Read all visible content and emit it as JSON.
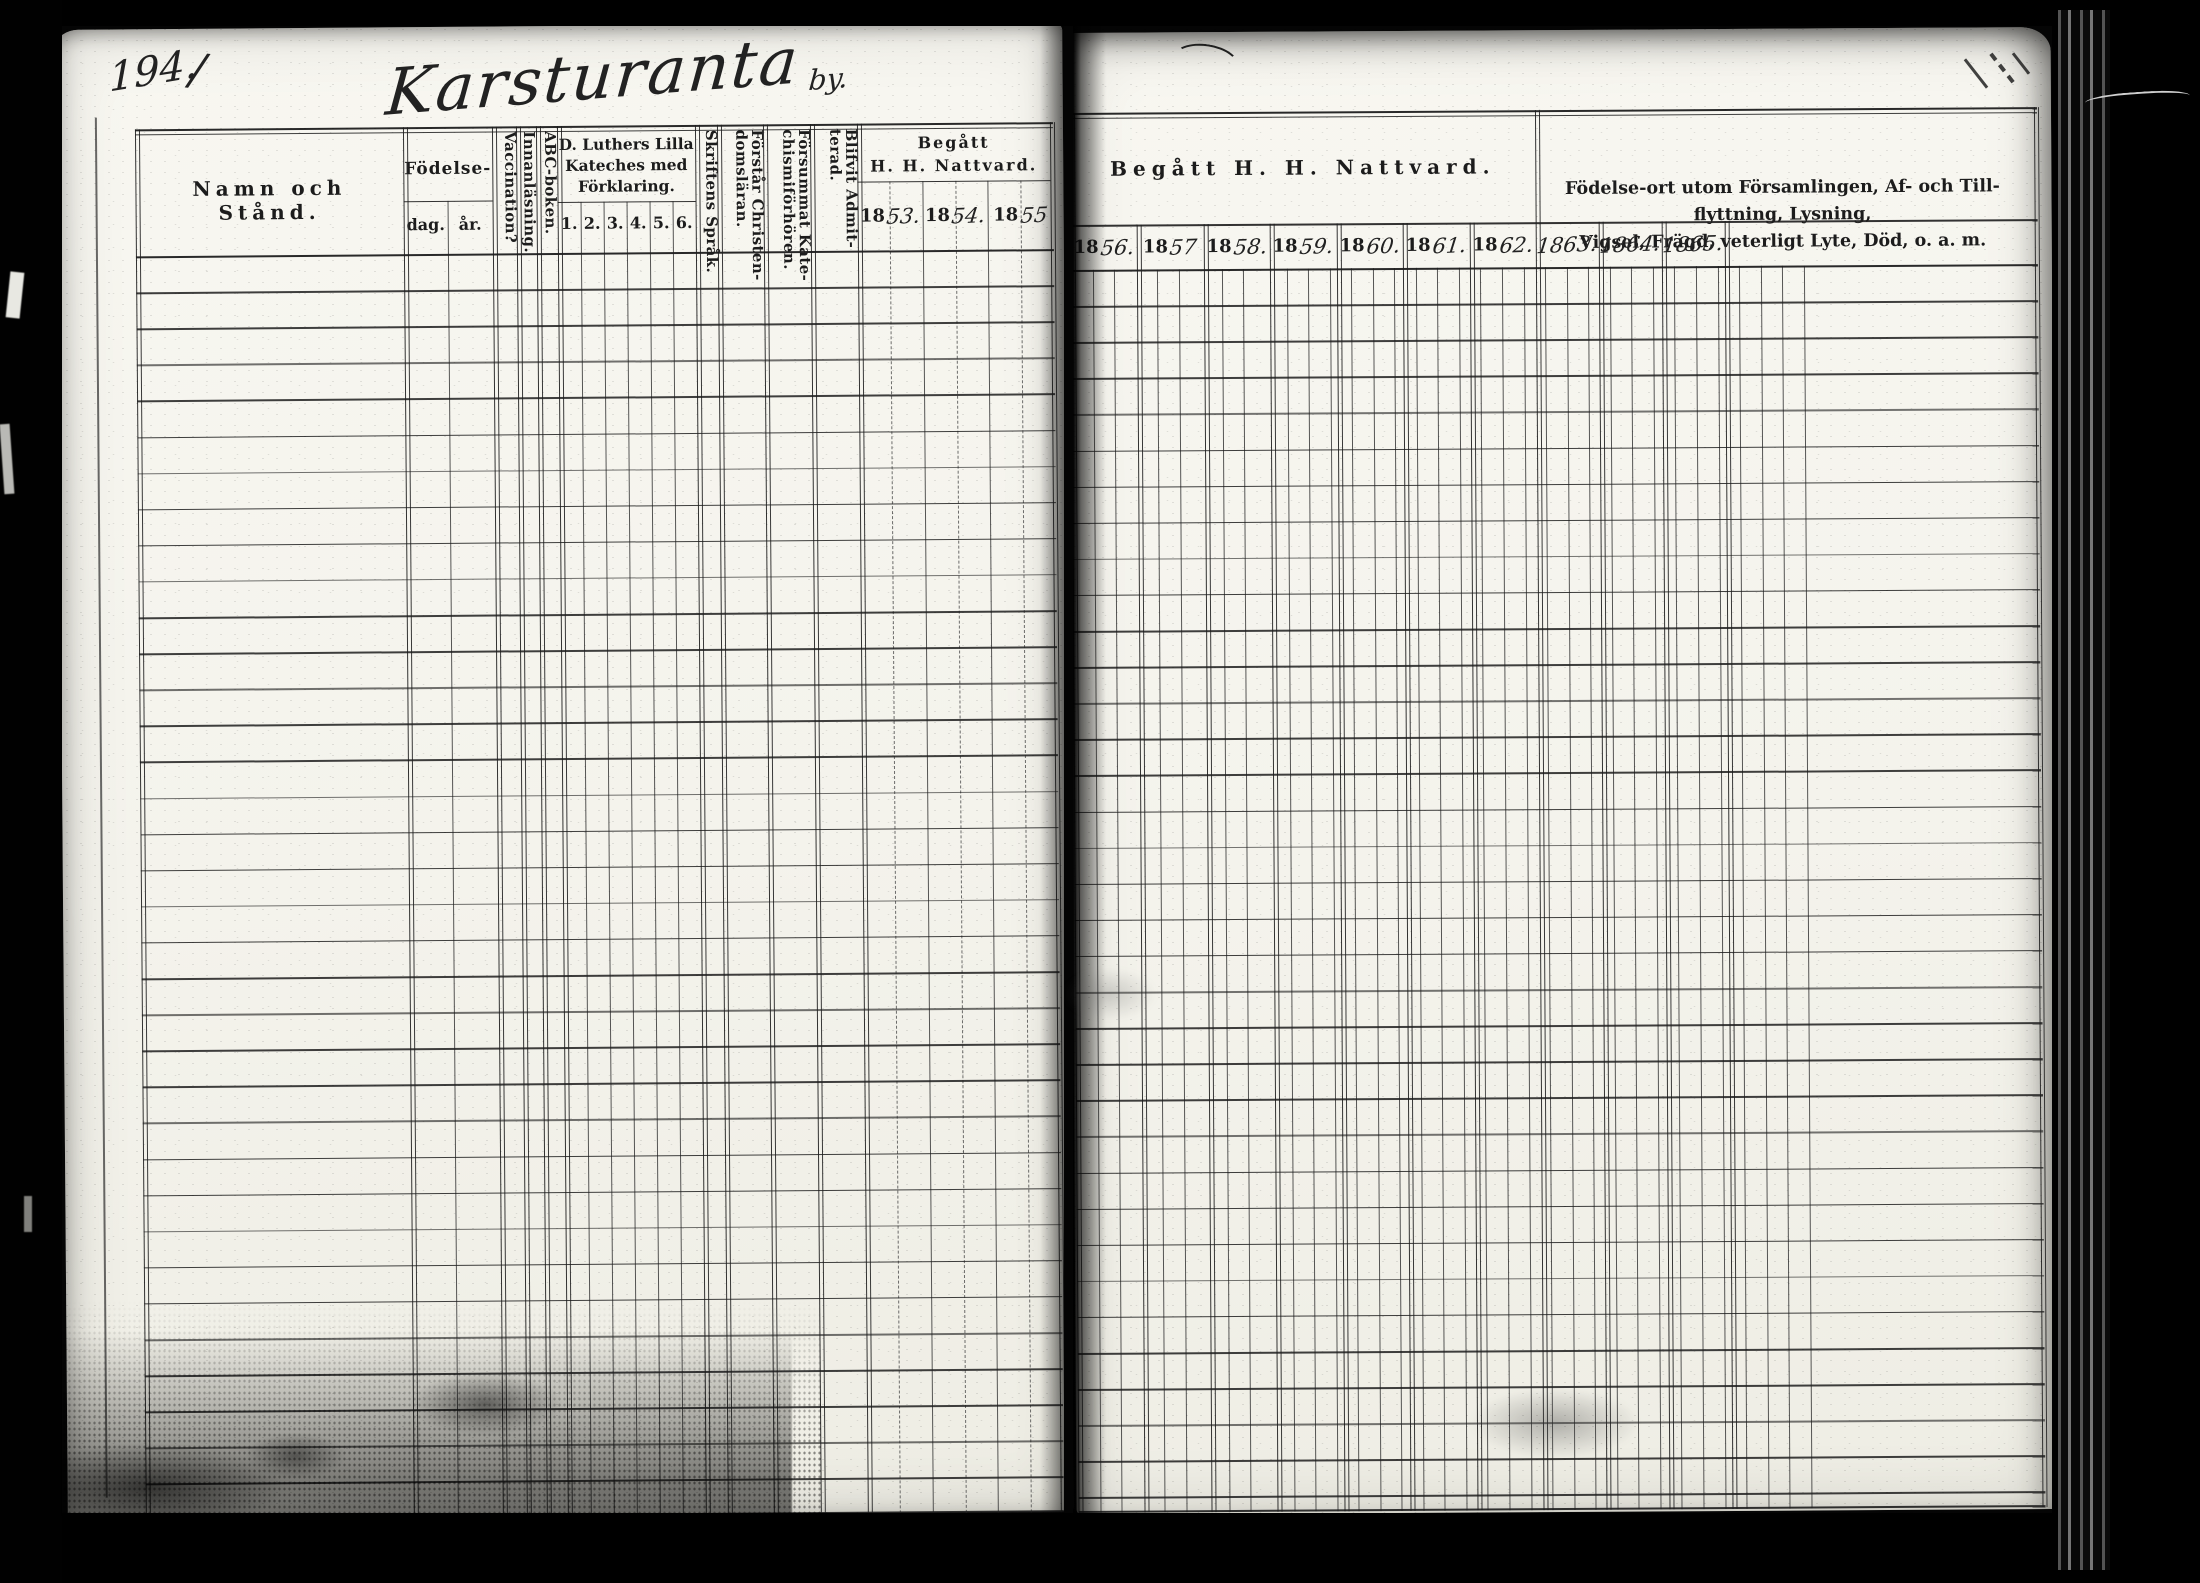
{
  "scan": {
    "page_number": "194.",
    "page_number_flourish": "∕",
    "village_title": "Karsturanta",
    "village_title_suffix": "by.",
    "paper_color": "#f6f5ef",
    "ink_color": "#1c1c1c"
  },
  "left_page": {
    "header": {
      "name_col": "Namn och Stånd.",
      "birth_group": "Födelse-",
      "birth_day": "dag.",
      "birth_year": "år.",
      "vaccination": "Vaccination?",
      "reading": "Innanläsning.",
      "abc_book": "ABC-boken.",
      "catechism_line1": "D. Luthers Lilla",
      "catechism_line2": "Kateches med",
      "catechism_line3": "Förklaring.",
      "catechism_grades": [
        "1.",
        "2.",
        "3.",
        "4.",
        "5.",
        "6."
      ],
      "scripture": "Skriftens Språk.",
      "understands_line1": "Förstår Christen-",
      "understands_line2": "domsläran.",
      "missed_line1": "Försummat Kate-",
      "missed_line2": "chismiförhören.",
      "admitted_line1": "Blifvit Admit-",
      "admitted_line2": "terad.",
      "communion_line1": "Begått",
      "communion_line2": "H. H. Nattvard.",
      "communion_years": [
        {
          "printed": "18",
          "hand": "53."
        },
        {
          "printed": "18",
          "hand": "54."
        },
        {
          "printed": "18",
          "hand": "55"
        }
      ]
    }
  },
  "right_page": {
    "header": {
      "communion_title": "Begått H. H. Nattvard.",
      "communion_years": [
        {
          "printed": "18",
          "hand": "56."
        },
        {
          "printed": "18",
          "hand": "57"
        },
        {
          "printed": "18",
          "hand": "58."
        },
        {
          "printed": "18",
          "hand": "59."
        },
        {
          "printed": "18",
          "hand": "60."
        },
        {
          "printed": "18",
          "hand": "61."
        },
        {
          "printed": "18",
          "hand": "62."
        }
      ],
      "handwritten_years": [
        "1863.",
        "1864.",
        "1865."
      ],
      "notes_line1": "Födelse-ort utom Församlingen, Af- och Till-flyttning, Lysning,",
      "notes_line2": "Vigsel, Frägd, veterligt Lyte, Död, o. a. m."
    }
  }
}
